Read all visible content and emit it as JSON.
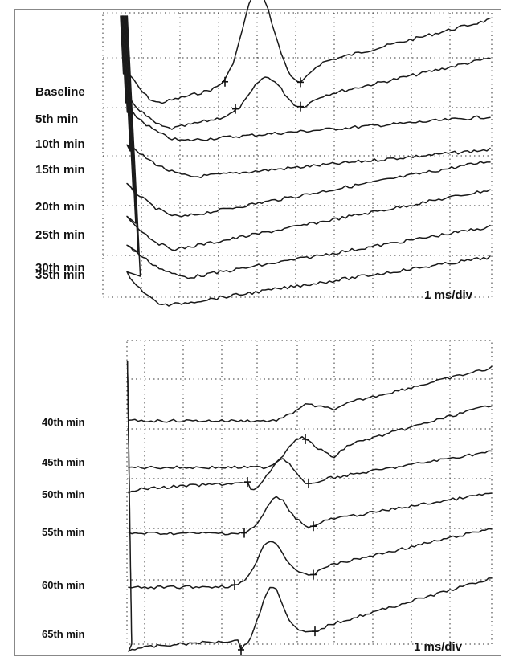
{
  "chart_data": [
    {
      "type": "line",
      "x_unit": "ms",
      "scale_label": "1 ms/div",
      "series": [
        {
          "name": "Baseline",
          "label": "Baseline"
        },
        {
          "name": "5th min",
          "label": "5th min"
        },
        {
          "name": "10th min",
          "label": "10th min"
        },
        {
          "name": "15th min",
          "label": "15th min"
        },
        {
          "name": "20th min",
          "label": "20th min"
        },
        {
          "name": "25th min",
          "label": "25th min"
        },
        {
          "name": "30th min",
          "label": "30th min"
        },
        {
          "name": "35th min",
          "label": "35th min"
        }
      ]
    },
    {
      "type": "line",
      "x_unit": "ms",
      "scale_label": "1 ms/div",
      "series": [
        {
          "name": "40th min",
          "label": "40th min"
        },
        {
          "name": "45th min",
          "label": "45th min"
        },
        {
          "name": "50th min",
          "label": "50th min"
        },
        {
          "name": "55th min",
          "label": "55th min"
        },
        {
          "name": "60th min",
          "label": "60th min"
        },
        {
          "name": "65th min",
          "label": "65th min"
        }
      ]
    }
  ],
  "colors": {
    "trace": "#1a1a1a",
    "grid": "#333333",
    "background": "#ffffff"
  }
}
